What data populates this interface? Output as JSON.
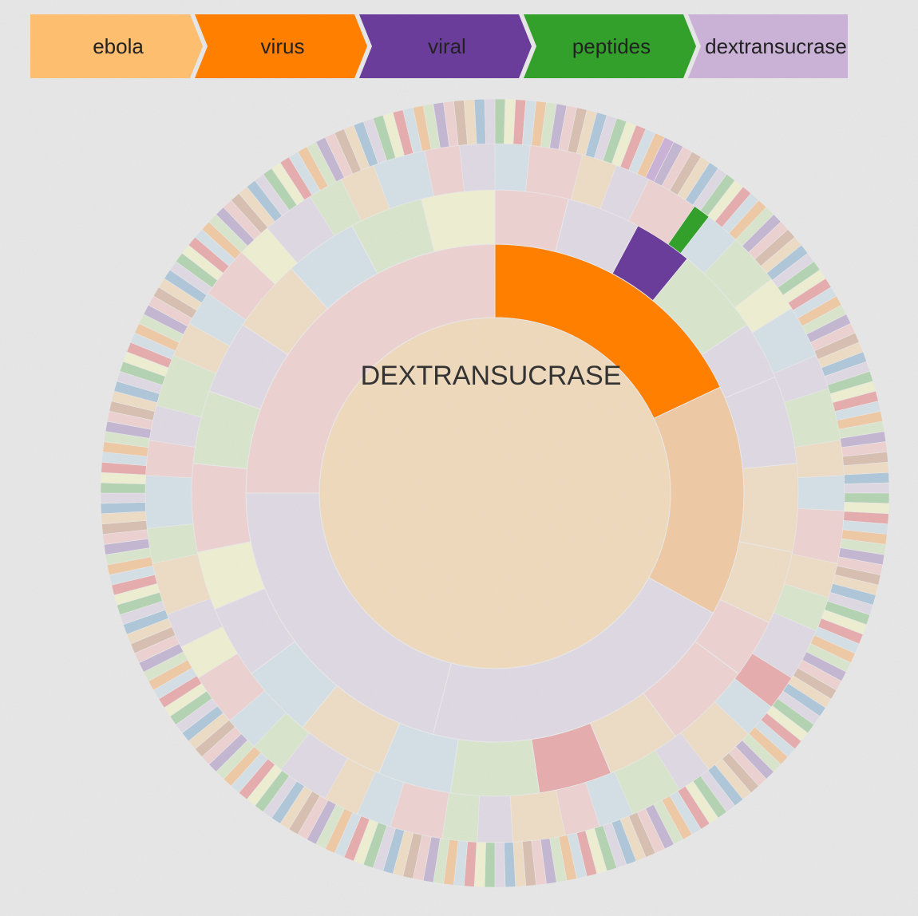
{
  "breadcrumb": {
    "steps": [
      {
        "label": "ebola",
        "color": "#fdbf6f"
      },
      {
        "label": "virus",
        "color": "#ff7f00"
      },
      {
        "label": "viral",
        "color": "#6a3d9a"
      },
      {
        "label": "peptides",
        "color": "#33a02c"
      },
      {
        "label": "dextransucrase",
        "color": "#cab2d6"
      }
    ]
  },
  "center": {
    "label": "DEXTRANSUCRASE"
  },
  "chart_data": {
    "type": "sunburst",
    "path": [
      "ebola",
      "virus",
      "viral",
      "peptides",
      "dextransucrase"
    ],
    "highlight_colors": [
      "#fdbf6f",
      "#ff7f00",
      "#6a3d9a",
      "#33a02c",
      "#cab2d6"
    ],
    "palette": [
      "#a6cee3",
      "#1f78b4",
      "#b2df8a",
      "#33a02c",
      "#fb9a99",
      "#e31a1c",
      "#fdbf6f",
      "#ff7f00",
      "#cab2d6",
      "#6a3d9a",
      "#ffff99",
      "#b15928"
    ],
    "rings": [
      {
        "level": 1,
        "segments": [
          {
            "value": 1,
            "color": "#fdbf6f"
          }
        ]
      },
      {
        "level": 2,
        "segments": [
          {
            "value": 18,
            "color": "#ff7f00",
            "highlight": true
          },
          {
            "value": 15,
            "color": "#ff7f00"
          },
          {
            "value": 21,
            "color": "#cab2d6"
          },
          {
            "value": 21,
            "color": "#cab2d6"
          },
          {
            "value": 25,
            "color": "#fb9a99"
          }
        ]
      },
      {
        "level": 3,
        "segments": [
          {
            "value": 5,
            "color": "#fb9a99"
          },
          {
            "value": 5,
            "color": "#cab2d6"
          },
          {
            "value": 4,
            "color": "#6a3d9a",
            "highlight": true
          },
          {
            "value": 6,
            "color": "#b2df8a"
          },
          {
            "value": 4,
            "color": "#cab2d6"
          },
          {
            "value": 6,
            "color": "#cab2d6"
          },
          {
            "value": 6,
            "color": "#fdbf6f"
          },
          {
            "value": 5,
            "color": "#fdbf6f"
          },
          {
            "value": 4,
            "color": "#fb9a99"
          },
          {
            "value": 6,
            "color": "#fb9a99"
          },
          {
            "value": 5,
            "color": "#fdbf6f"
          },
          {
            "value": 5,
            "color": "#e31a1c"
          },
          {
            "value": 6,
            "color": "#b2df8a"
          },
          {
            "value": 5,
            "color": "#a6cee3"
          },
          {
            "value": 6,
            "color": "#fdbf6f"
          },
          {
            "value": 5,
            "color": "#a6cee3"
          },
          {
            "value": 5,
            "color": "#cab2d6"
          },
          {
            "value": 4,
            "color": "#ffff99"
          },
          {
            "value": 6,
            "color": "#fb9a99"
          },
          {
            "value": 5,
            "color": "#b2df8a"
          },
          {
            "value": 5,
            "color": "#cab2d6"
          },
          {
            "value": 5,
            "color": "#fdbf6f"
          },
          {
            "value": 5,
            "color": "#a6cee3"
          },
          {
            "value": 5,
            "color": "#b2df8a"
          },
          {
            "value": 5,
            "color": "#ffff99"
          }
        ]
      },
      {
        "level": 4,
        "segments": [
          {
            "value": 2,
            "color": "#a6cee3"
          },
          {
            "value": 3,
            "color": "#fb9a99"
          },
          {
            "value": 2,
            "color": "#fdbf6f"
          },
          {
            "value": 2,
            "color": "#cab2d6"
          },
          {
            "value": 3,
            "color": "#fb9a99"
          },
          {
            "value": 1,
            "color": "#33a02c",
            "highlight": true
          },
          {
            "value": 2,
            "color": "#a6cee3"
          },
          {
            "value": 3,
            "color": "#b2df8a"
          },
          {
            "value": 2,
            "color": "#ffff99"
          },
          {
            "value": 3,
            "color": "#a6cee3"
          },
          {
            "value": 2,
            "color": "#cab2d6"
          },
          {
            "value": 3,
            "color": "#b2df8a"
          },
          {
            "value": 2,
            "color": "#fdbf6f"
          },
          {
            "value": 2,
            "color": "#a6cee3"
          },
          {
            "value": 3,
            "color": "#fb9a99"
          },
          {
            "value": 2,
            "color": "#fdbf6f"
          },
          {
            "value": 2,
            "color": "#b2df8a"
          },
          {
            "value": 3,
            "color": "#cab2d6"
          },
          {
            "value": 2,
            "color": "#e31a1c"
          },
          {
            "value": 2,
            "color": "#a6cee3"
          },
          {
            "value": 3,
            "color": "#fdbf6f"
          },
          {
            "value": 2,
            "color": "#cab2d6"
          },
          {
            "value": 3,
            "color": "#b2df8a"
          },
          {
            "value": 2,
            "color": "#a6cee3"
          },
          {
            "value": 2,
            "color": "#fb9a99"
          },
          {
            "value": 3,
            "color": "#fdbf6f"
          },
          {
            "value": 2,
            "color": "#cab2d6"
          },
          {
            "value": 2,
            "color": "#b2df8a"
          },
          {
            "value": 3,
            "color": "#fb9a99"
          },
          {
            "value": 2,
            "color": "#a6cee3"
          },
          {
            "value": 2,
            "color": "#fdbf6f"
          },
          {
            "value": 3,
            "color": "#cab2d6"
          },
          {
            "value": 2,
            "color": "#b2df8a"
          },
          {
            "value": 2,
            "color": "#a6cee3"
          },
          {
            "value": 3,
            "color": "#fb9a99"
          },
          {
            "value": 2,
            "color": "#ffff99"
          },
          {
            "value": 2,
            "color": "#cab2d6"
          },
          {
            "value": 3,
            "color": "#fdbf6f"
          },
          {
            "value": 2,
            "color": "#b2df8a"
          },
          {
            "value": 3,
            "color": "#a6cee3"
          },
          {
            "value": 2,
            "color": "#fb9a99"
          },
          {
            "value": 2,
            "color": "#cab2d6"
          },
          {
            "value": 3,
            "color": "#b2df8a"
          },
          {
            "value": 2,
            "color": "#fdbf6f"
          },
          {
            "value": 2,
            "color": "#a6cee3"
          },
          {
            "value": 3,
            "color": "#fb9a99"
          },
          {
            "value": 2,
            "color": "#ffff99"
          },
          {
            "value": 3,
            "color": "#cab2d6"
          },
          {
            "value": 2,
            "color": "#b2df8a"
          },
          {
            "value": 2,
            "color": "#fdbf6f"
          },
          {
            "value": 3,
            "color": "#a6cee3"
          },
          {
            "value": 2,
            "color": "#fb9a99"
          },
          {
            "value": 2,
            "color": "#cab2d6"
          }
        ]
      },
      {
        "level": 5,
        "segments": [
          {
            "value": 1,
            "color": "#a6cee3"
          },
          {
            "value": 1,
            "color": "#fb9a99"
          },
          {
            "value": 1,
            "color": "#cab2d6",
            "highlight": true
          },
          {
            "value": 1,
            "color": "#fdbf6f"
          },
          {
            "value": 1,
            "color": "#b2df8a"
          }
        ]
      }
    ]
  }
}
